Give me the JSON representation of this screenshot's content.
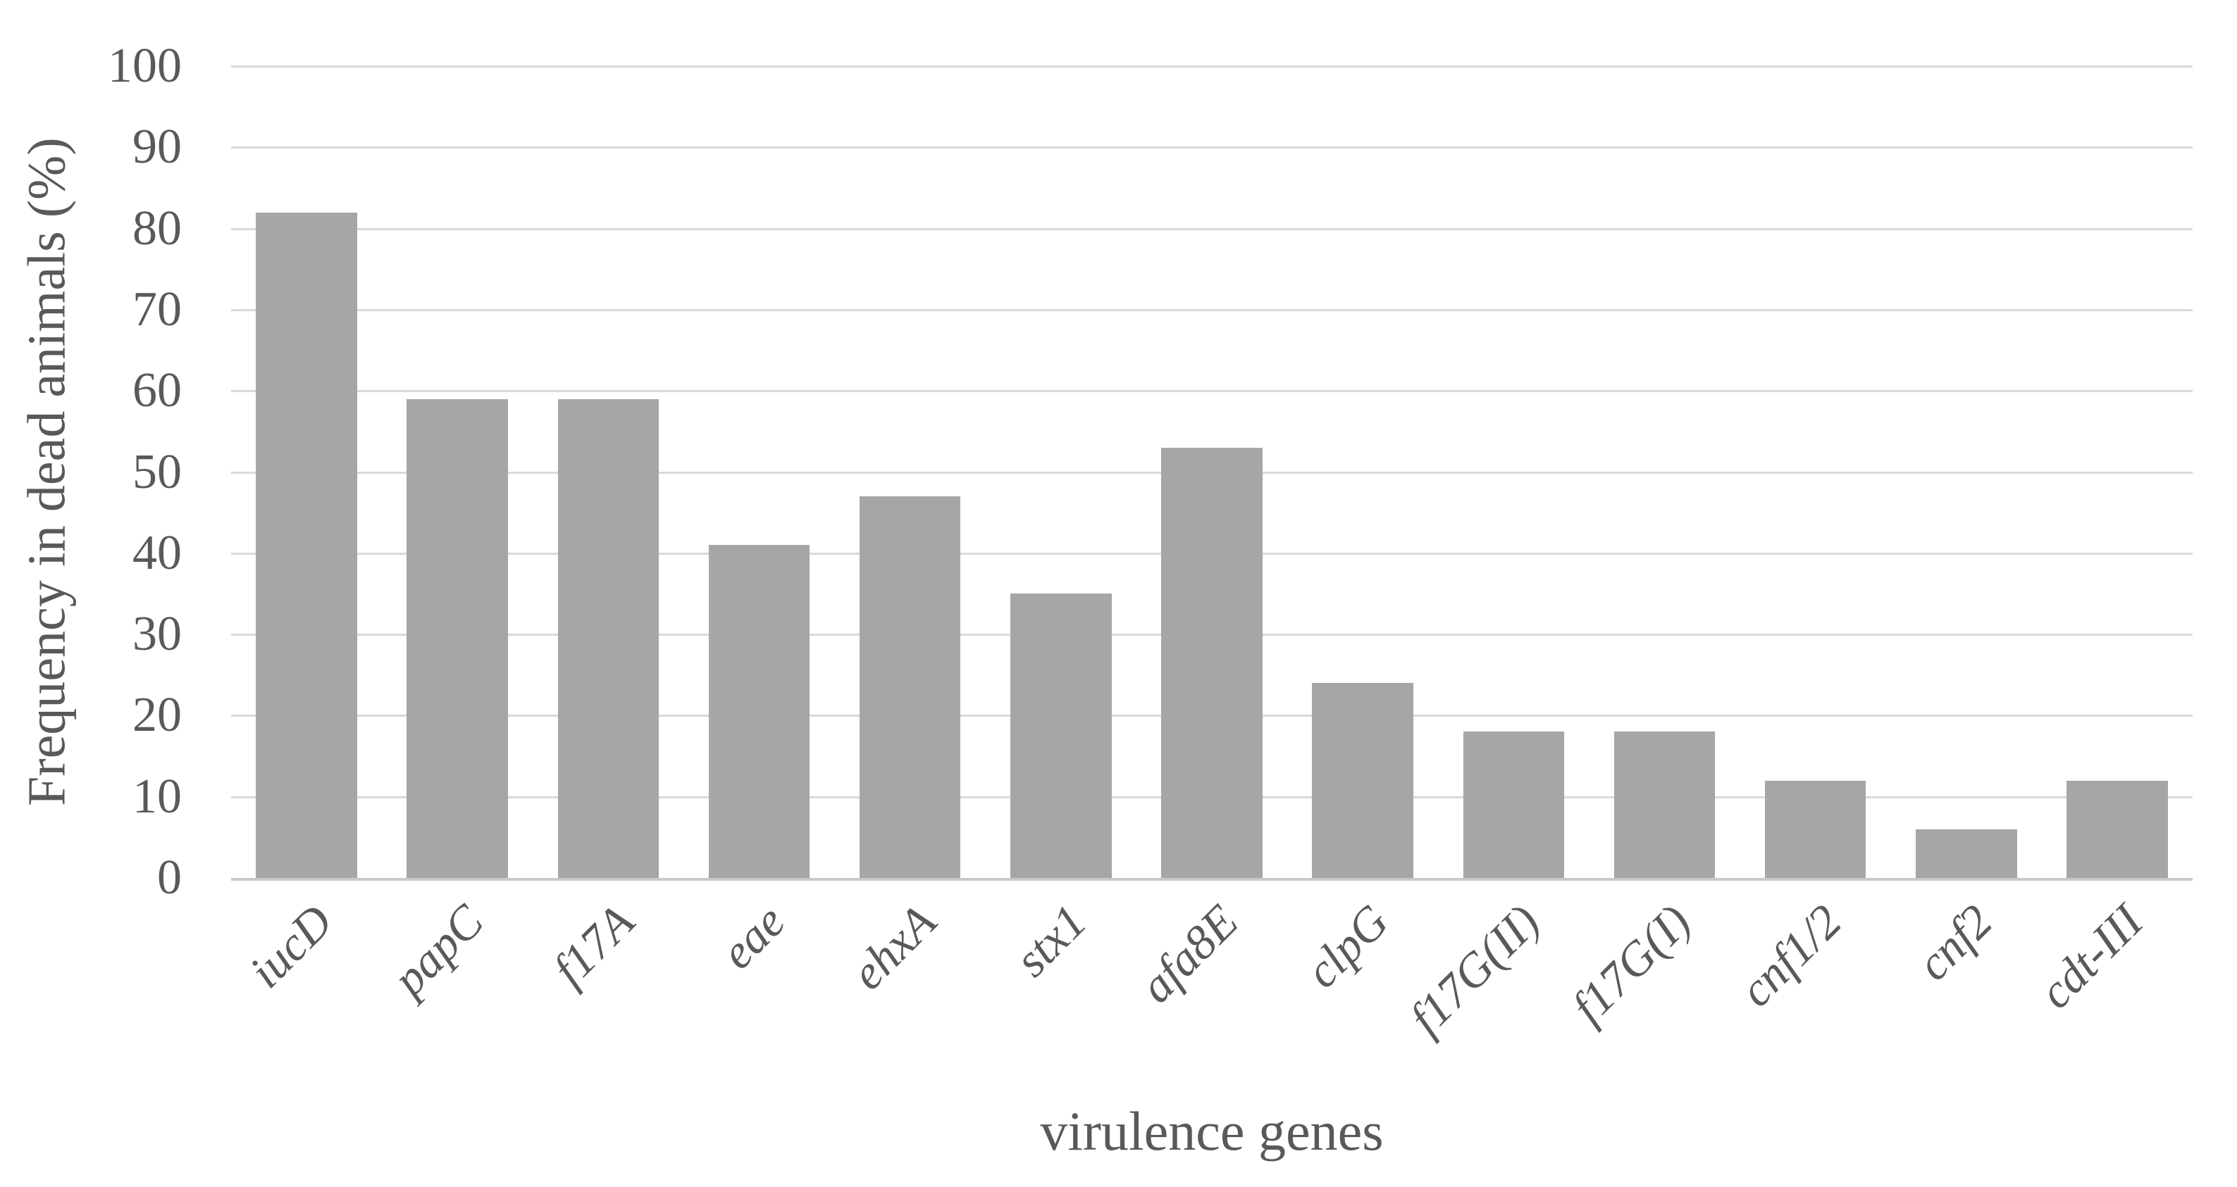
{
  "chart_data": {
    "type": "bar",
    "title": "",
    "xlabel": "virulence genes",
    "ylabel": "Frequency in dead animals (%)",
    "categories": [
      "iucD",
      "papC",
      "f17A",
      "eae",
      "ehxA",
      "stx1",
      "afa8E",
      "clpG",
      "f17G(II)",
      "f17G(I)",
      "cnf1/2",
      "cnf2",
      "cdt-III"
    ],
    "values": [
      82,
      59,
      59,
      41,
      47,
      35,
      53,
      24,
      18,
      18,
      12,
      6,
      12
    ],
    "series_name": "Frequency in dead animals (%)",
    "ylim": [
      0,
      100
    ],
    "yticks": [
      0,
      10,
      20,
      30,
      40,
      50,
      60,
      70,
      80,
      90,
      100
    ],
    "grid": true,
    "legend_position": "none",
    "category_label_rotation_deg": 45,
    "category_label_style": "italic",
    "colors": {
      "bar": "#a6a6a6",
      "gridline": "#d9d9d9",
      "axis_line": "#c9c9c9",
      "text": "#595959",
      "background": "#ffffff"
    }
  }
}
